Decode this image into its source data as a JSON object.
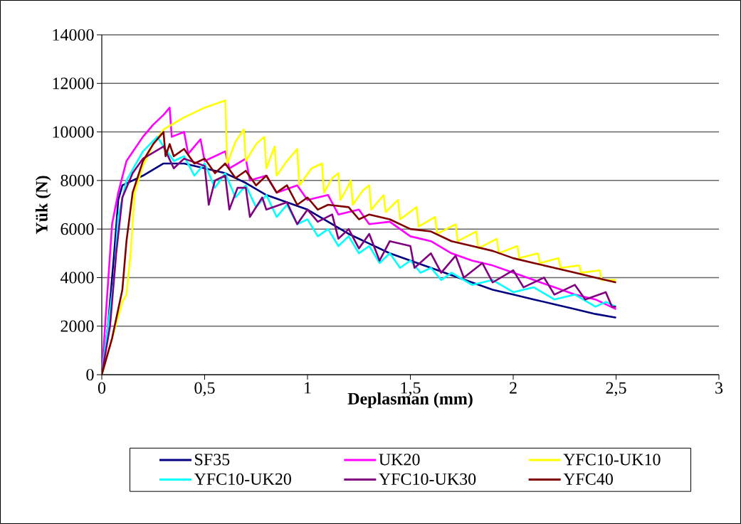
{
  "chart_data": {
    "type": "line",
    "xlabel": "Deplasman (mm)",
    "ylabel": "Yük (N)",
    "xlim": [
      0,
      3
    ],
    "xticks": [
      0,
      {
        "value": 0.5,
        "label": "0,5"
      },
      1,
      {
        "value": 1.5,
        "label": "1,5"
      },
      2,
      {
        "value": 2.5,
        "label": "2,5"
      },
      3
    ],
    "ylim": [
      0,
      14000
    ],
    "yticks": [
      0,
      2000,
      4000,
      6000,
      8000,
      10000,
      12000,
      14000
    ],
    "grid": "y",
    "legend": "bottom",
    "marker": "none",
    "line_style": "solid",
    "series": [
      {
        "name": "SF35",
        "color": "#000080",
        "x": [
          0,
          0.03,
          0.06,
          0.08,
          0.1,
          0.15,
          0.2,
          0.3,
          0.4,
          0.5,
          0.6,
          0.7,
          0.8,
          0.9,
          1.0,
          1.1,
          1.2,
          1.3,
          1.4,
          1.5,
          1.6,
          1.7,
          1.8,
          1.9,
          2.0,
          2.1,
          2.2,
          2.3,
          2.4,
          2.5
        ],
        "values": [
          0,
          2000,
          5000,
          7200,
          7800,
          8000,
          8200,
          8700,
          8700,
          8500,
          8300,
          7900,
          7400,
          7100,
          6800,
          6300,
          5800,
          5400,
          5000,
          4700,
          4400,
          4100,
          3800,
          3500,
          3300,
          3100,
          2900,
          2700,
          2500,
          2350
        ]
      },
      {
        "name": "UK20",
        "color": "#ff00ff",
        "x": [
          0,
          0.02,
          0.05,
          0.08,
          0.12,
          0.2,
          0.25,
          0.3,
          0.33,
          0.34,
          0.4,
          0.42,
          0.48,
          0.5,
          0.6,
          0.62,
          0.7,
          0.72,
          0.8,
          0.85,
          0.95,
          1.0,
          1.1,
          1.15,
          1.25,
          1.3,
          1.4,
          1.5,
          1.6,
          1.7,
          1.8,
          1.9,
          2.0,
          2.1,
          2.2,
          2.3,
          2.4,
          2.5
        ],
        "values": [
          0,
          2500,
          6200,
          7500,
          8800,
          9800,
          10300,
          10700,
          11000,
          9800,
          10000,
          9100,
          9700,
          8800,
          9200,
          8500,
          8900,
          8000,
          8200,
          7500,
          7800,
          7200,
          7400,
          6600,
          6800,
          6200,
          6300,
          5700,
          5500,
          5000,
          4700,
          4500,
          4200,
          3900,
          3600,
          3300,
          3100,
          2700
        ]
      },
      {
        "name": "YFC10-UK10",
        "color": "#ffff00",
        "x": [
          0,
          0.05,
          0.1,
          0.12,
          0.14,
          0.16,
          0.2,
          0.25,
          0.3,
          0.4,
          0.5,
          0.6,
          0.61,
          0.65,
          0.69,
          0.7,
          0.75,
          0.79,
          0.8,
          0.84,
          0.85,
          0.9,
          0.95,
          0.96,
          1.02,
          1.07,
          1.08,
          1.12,
          1.15,
          1.16,
          1.2,
          1.21,
          1.22,
          1.27,
          1.3,
          1.31,
          1.37,
          1.38,
          1.44,
          1.45,
          1.53,
          1.54,
          1.62,
          1.63,
          1.72,
          1.73,
          1.82,
          1.83,
          1.92,
          1.93,
          2.02,
          2.03,
          2.12,
          2.13,
          2.22,
          2.23,
          2.32,
          2.33,
          2.42,
          2.43,
          2.5
        ],
        "values": [
          0,
          1500,
          3000,
          3300,
          5000,
          7500,
          8600,
          9500,
          10100,
          10600,
          11000,
          11300,
          8700,
          9600,
          10100,
          8800,
          9500,
          9800,
          8500,
          9400,
          8200,
          8800,
          9300,
          7800,
          8500,
          8700,
          7500,
          8100,
          8300,
          7200,
          7800,
          8000,
          7000,
          7600,
          7800,
          6800,
          7400,
          6700,
          7200,
          6400,
          6900,
          6100,
          6500,
          5800,
          6200,
          5500,
          5900,
          5200,
          5600,
          5000,
          5300,
          4800,
          5000,
          4600,
          4800,
          4400,
          4500,
          4200,
          4300,
          3900,
          3900
        ]
      },
      {
        "name": "YFC10-UK20",
        "color": "#00ffff",
        "x": [
          0,
          0.03,
          0.06,
          0.08,
          0.12,
          0.2,
          0.27,
          0.3,
          0.35,
          0.4,
          0.45,
          0.5,
          0.55,
          0.6,
          0.65,
          0.7,
          0.75,
          0.8,
          0.85,
          0.9,
          0.95,
          1.0,
          1.05,
          1.1,
          1.15,
          1.2,
          1.25,
          1.3,
          1.35,
          1.4,
          1.45,
          1.5,
          1.55,
          1.6,
          1.65,
          1.7,
          1.8,
          1.9,
          2.0,
          2.1,
          2.2,
          2.3,
          2.4,
          2.45,
          2.5
        ],
        "values": [
          0,
          null,
          4000,
          6500,
          8000,
          9200,
          9800,
          9400,
          8800,
          9000,
          8200,
          8700,
          7700,
          8300,
          7300,
          7800,
          6900,
          7400,
          6500,
          7000,
          6200,
          6400,
          5700,
          6000,
          5300,
          5700,
          5000,
          5300,
          4600,
          5000,
          4400,
          4700,
          4200,
          4400,
          3900,
          4200,
          3700,
          3900,
          3400,
          3600,
          3100,
          3300,
          2800,
          3000,
          2800
        ]
      },
      {
        "name": "YFC10-UK30",
        "color": "#800080",
        "x": [
          0,
          0.04,
          0.07,
          0.1,
          0.15,
          0.2,
          0.3,
          0.35,
          0.4,
          0.5,
          0.52,
          0.55,
          0.6,
          0.62,
          0.66,
          0.7,
          0.72,
          0.78,
          0.8,
          0.9,
          0.95,
          1.0,
          1.05,
          1.12,
          1.15,
          1.2,
          1.25,
          1.3,
          1.35,
          1.4,
          1.5,
          1.52,
          1.6,
          1.65,
          1.72,
          1.76,
          1.85,
          1.9,
          2.0,
          2.05,
          2.15,
          2.2,
          2.3,
          2.35,
          2.45,
          2.48,
          2.5
        ],
        "values": [
          0,
          2000,
          5000,
          7300,
          8300,
          8900,
          9400,
          8500,
          8900,
          8600,
          7000,
          8000,
          8200,
          6800,
          7700,
          7700,
          6500,
          7300,
          6800,
          7100,
          6200,
          6800,
          6300,
          6600,
          5600,
          6000,
          5200,
          5800,
          4700,
          5500,
          5300,
          4400,
          5000,
          4200,
          4900,
          4000,
          4600,
          3800,
          4300,
          3600,
          4000,
          3300,
          3700,
          3100,
          3400,
          2800,
          2800
        ]
      },
      {
        "name": "YFC40",
        "color": "#800000",
        "x": [
          0,
          0.05,
          0.1,
          0.12,
          0.15,
          0.2,
          0.25,
          0.3,
          0.31,
          0.33,
          0.35,
          0.4,
          0.45,
          0.5,
          0.55,
          0.6,
          0.65,
          0.7,
          0.75,
          0.8,
          0.85,
          0.9,
          0.95,
          1.0,
          1.05,
          1.1,
          1.2,
          1.25,
          1.3,
          1.4,
          1.5,
          1.6,
          1.7,
          1.8,
          1.9,
          2.0,
          2.1,
          2.2,
          2.3,
          2.4,
          2.5
        ],
        "values": [
          0,
          1500,
          3500,
          5500,
          7500,
          8800,
          9500,
          10000,
          9000,
          9500,
          9000,
          9300,
          8700,
          8900,
          8300,
          8700,
          8100,
          8400,
          7800,
          8200,
          7500,
          7800,
          7000,
          7300,
          6800,
          7000,
          6900,
          6400,
          6600,
          6400,
          6000,
          5900,
          5500,
          5300,
          5100,
          4800,
          4600,
          4400,
          4200,
          4000,
          3800
        ]
      }
    ]
  }
}
